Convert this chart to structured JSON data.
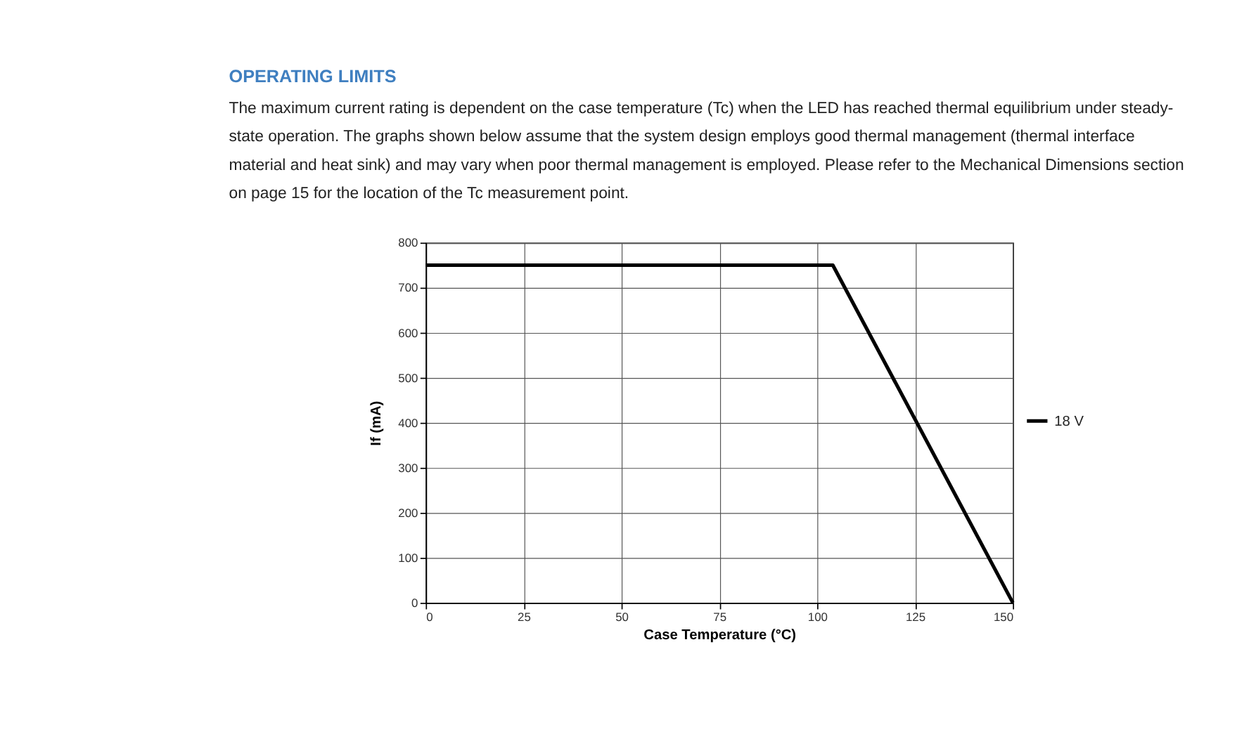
{
  "chart_data": {
    "type": "line",
    "title": "OPERATING LIMITS",
    "subtitle": "The maximum current rating is dependent on the case temperature (Tc) when the LED has reached thermal equilibrium under steady-state operation. The graphs shown below assume that the system design employs good thermal management (thermal interface material and heat sink) and may vary when poor thermal management is employed. Please refer to the Mechanical Dimensions section on page 15 for the location of the Tc measurement point.",
    "xlabel": "Case Temperature (°C)",
    "ylabel": "If (mA)",
    "series": [
      {
        "name": "18 V",
        "color": "#000000",
        "x": [
          0,
          104,
          150
        ],
        "values": [
          750,
          750,
          0
        ]
      }
    ],
    "xlim": [
      0,
      150
    ],
    "xticks": [
      0,
      25,
      50,
      75,
      100,
      125,
      150
    ],
    "ylim": [
      0,
      800
    ],
    "yticks": [
      0,
      100,
      200,
      300,
      400,
      500,
      600,
      700,
      800
    ],
    "grid": true,
    "legend": "right",
    "marker": "none",
    "line_style": "solid"
  }
}
